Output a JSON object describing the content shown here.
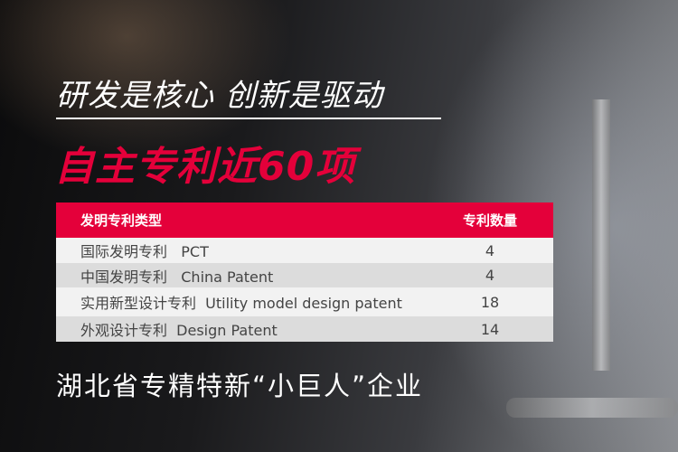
{
  "headline": "研发是核心 创新是驱动",
  "subheadline": "自主专利近60项",
  "table": {
    "headers": [
      "发明专利类型",
      "专利数量"
    ],
    "rows": [
      {
        "type": "国际发明专利   PCT",
        "count": "4"
      },
      {
        "type": "中国发明专利   China Patent",
        "count": "4"
      },
      {
        "type": "实用新型设计专利  Utility model design patent",
        "count": "18"
      },
      {
        "type": "外观设计专利  Design Patent",
        "count": "14"
      }
    ]
  },
  "slogan": "湖北省专精特新“小巨人”企业",
  "colors": {
    "accent": "#e4003a"
  }
}
